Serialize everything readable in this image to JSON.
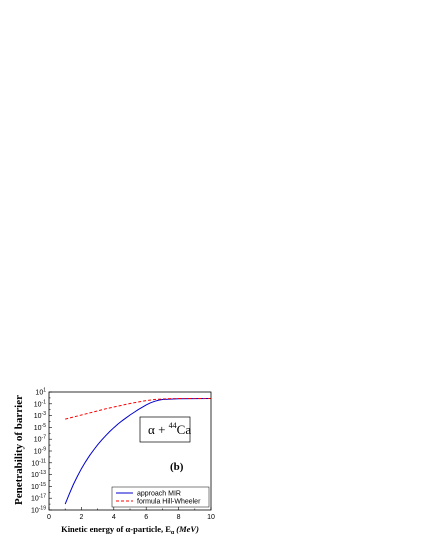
{
  "chart_data": {
    "type": "line",
    "ylabel": "Penetrability of barrier",
    "xlabel": {
      "prefix": "Kinetic energy of ",
      "alpha": "α",
      "middle": "-particle, E",
      "sub": "α",
      "unit": "(MeV)"
    },
    "xlim": [
      0,
      10
    ],
    "ylim_log10": [
      -19,
      1
    ],
    "x_ticks": [
      0,
      2,
      4,
      6,
      8,
      10
    ],
    "x_minor": [
      1,
      3,
      5,
      7,
      9
    ],
    "y_ticks_exp": [
      1,
      -1,
      -3,
      -5,
      -7,
      -9,
      -11,
      -13,
      -15,
      -17,
      -19
    ],
    "y_tick_base": "10",
    "annotation": {
      "alpha": "α",
      "plus": " + ",
      "mass": "44",
      "element": "Ca"
    },
    "panel_label": "(b)",
    "series": [
      {
        "name": "approach MIR",
        "color": "#0000cc",
        "style": "solid",
        "points": [
          [
            1.0,
            -18.0
          ],
          [
            1.25,
            -16.3
          ],
          [
            1.5,
            -14.7
          ],
          [
            1.75,
            -13.3
          ],
          [
            2.0,
            -12.0
          ],
          [
            2.25,
            -10.85
          ],
          [
            2.5,
            -9.8
          ],
          [
            2.75,
            -8.85
          ],
          [
            3.0,
            -7.95
          ],
          [
            3.25,
            -7.15
          ],
          [
            3.5,
            -6.4
          ],
          [
            3.75,
            -5.7
          ],
          [
            4.0,
            -5.05
          ],
          [
            4.25,
            -4.45
          ],
          [
            4.5,
            -3.9
          ],
          [
            4.75,
            -3.4
          ],
          [
            5.0,
            -2.9
          ],
          [
            5.25,
            -2.45
          ],
          [
            5.5,
            -2.0
          ],
          [
            5.75,
            -1.6
          ],
          [
            6.0,
            -1.2
          ],
          [
            6.25,
            -0.85
          ],
          [
            6.5,
            -0.6
          ],
          [
            6.75,
            -0.4
          ],
          [
            7.0,
            -0.28
          ],
          [
            7.5,
            -0.2
          ],
          [
            8.0,
            -0.15
          ],
          [
            9.0,
            -0.12
          ],
          [
            10.0,
            -0.1
          ]
        ]
      },
      {
        "name": "formula Hill-Wheeler",
        "color": "#ff0000",
        "style": "dashed",
        "points": [
          [
            1.0,
            -3.6
          ],
          [
            1.5,
            -3.25
          ],
          [
            2.0,
            -2.9
          ],
          [
            2.5,
            -2.55
          ],
          [
            3.0,
            -2.2
          ],
          [
            3.5,
            -1.85
          ],
          [
            4.0,
            -1.55
          ],
          [
            4.5,
            -1.25
          ],
          [
            5.0,
            -0.95
          ],
          [
            5.5,
            -0.7
          ],
          [
            6.0,
            -0.45
          ],
          [
            6.5,
            -0.28
          ],
          [
            7.0,
            -0.18
          ],
          [
            7.5,
            -0.13
          ],
          [
            8.0,
            -0.11
          ],
          [
            9.0,
            -0.1
          ],
          [
            10.0,
            -0.1
          ]
        ]
      }
    ],
    "legend_position": "bottom-right"
  }
}
